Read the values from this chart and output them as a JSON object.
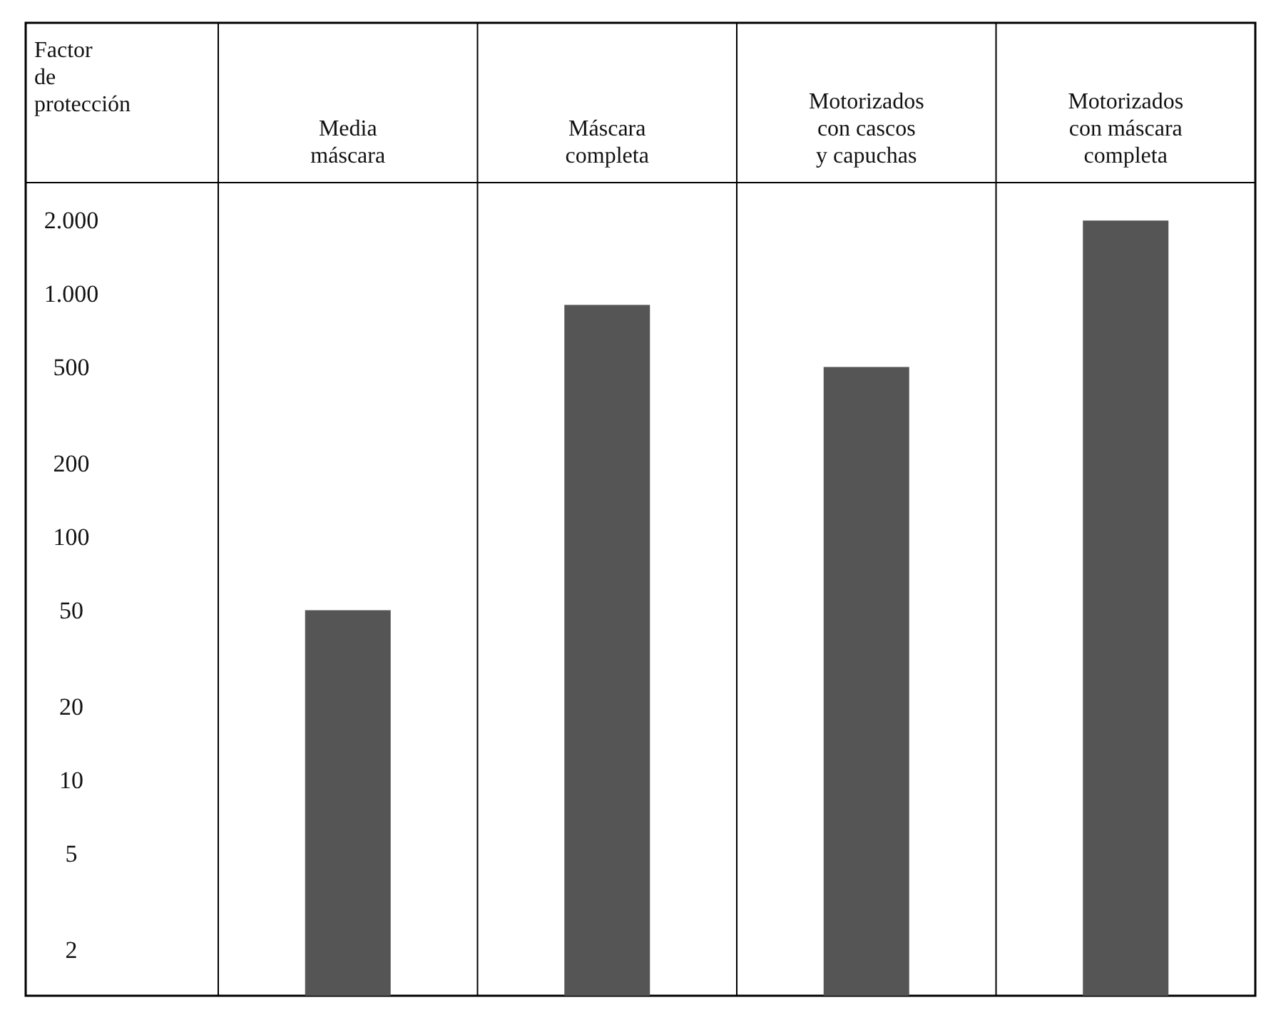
{
  "chart_data": {
    "type": "bar",
    "ylabel": "Factor de protección",
    "categories": [
      "Media máscara",
      "Máscara completa",
      "Motorizados con cascos y capuchas",
      "Motorizados con máscara completa"
    ],
    "values": [
      50,
      900,
      500,
      2000
    ],
    "color": "#555555",
    "log": true,
    "ylim": [
      1.3,
      13000
    ],
    "yticks": [
      2,
      5,
      10,
      20,
      50,
      {
        "value": 100,
        "label": "100"
      },
      200,
      500,
      {
        "value": 1000,
        "label": "1.000"
      },
      {
        "value": 2000,
        "label": "2.000"
      }
    ],
    "grid": false
  }
}
